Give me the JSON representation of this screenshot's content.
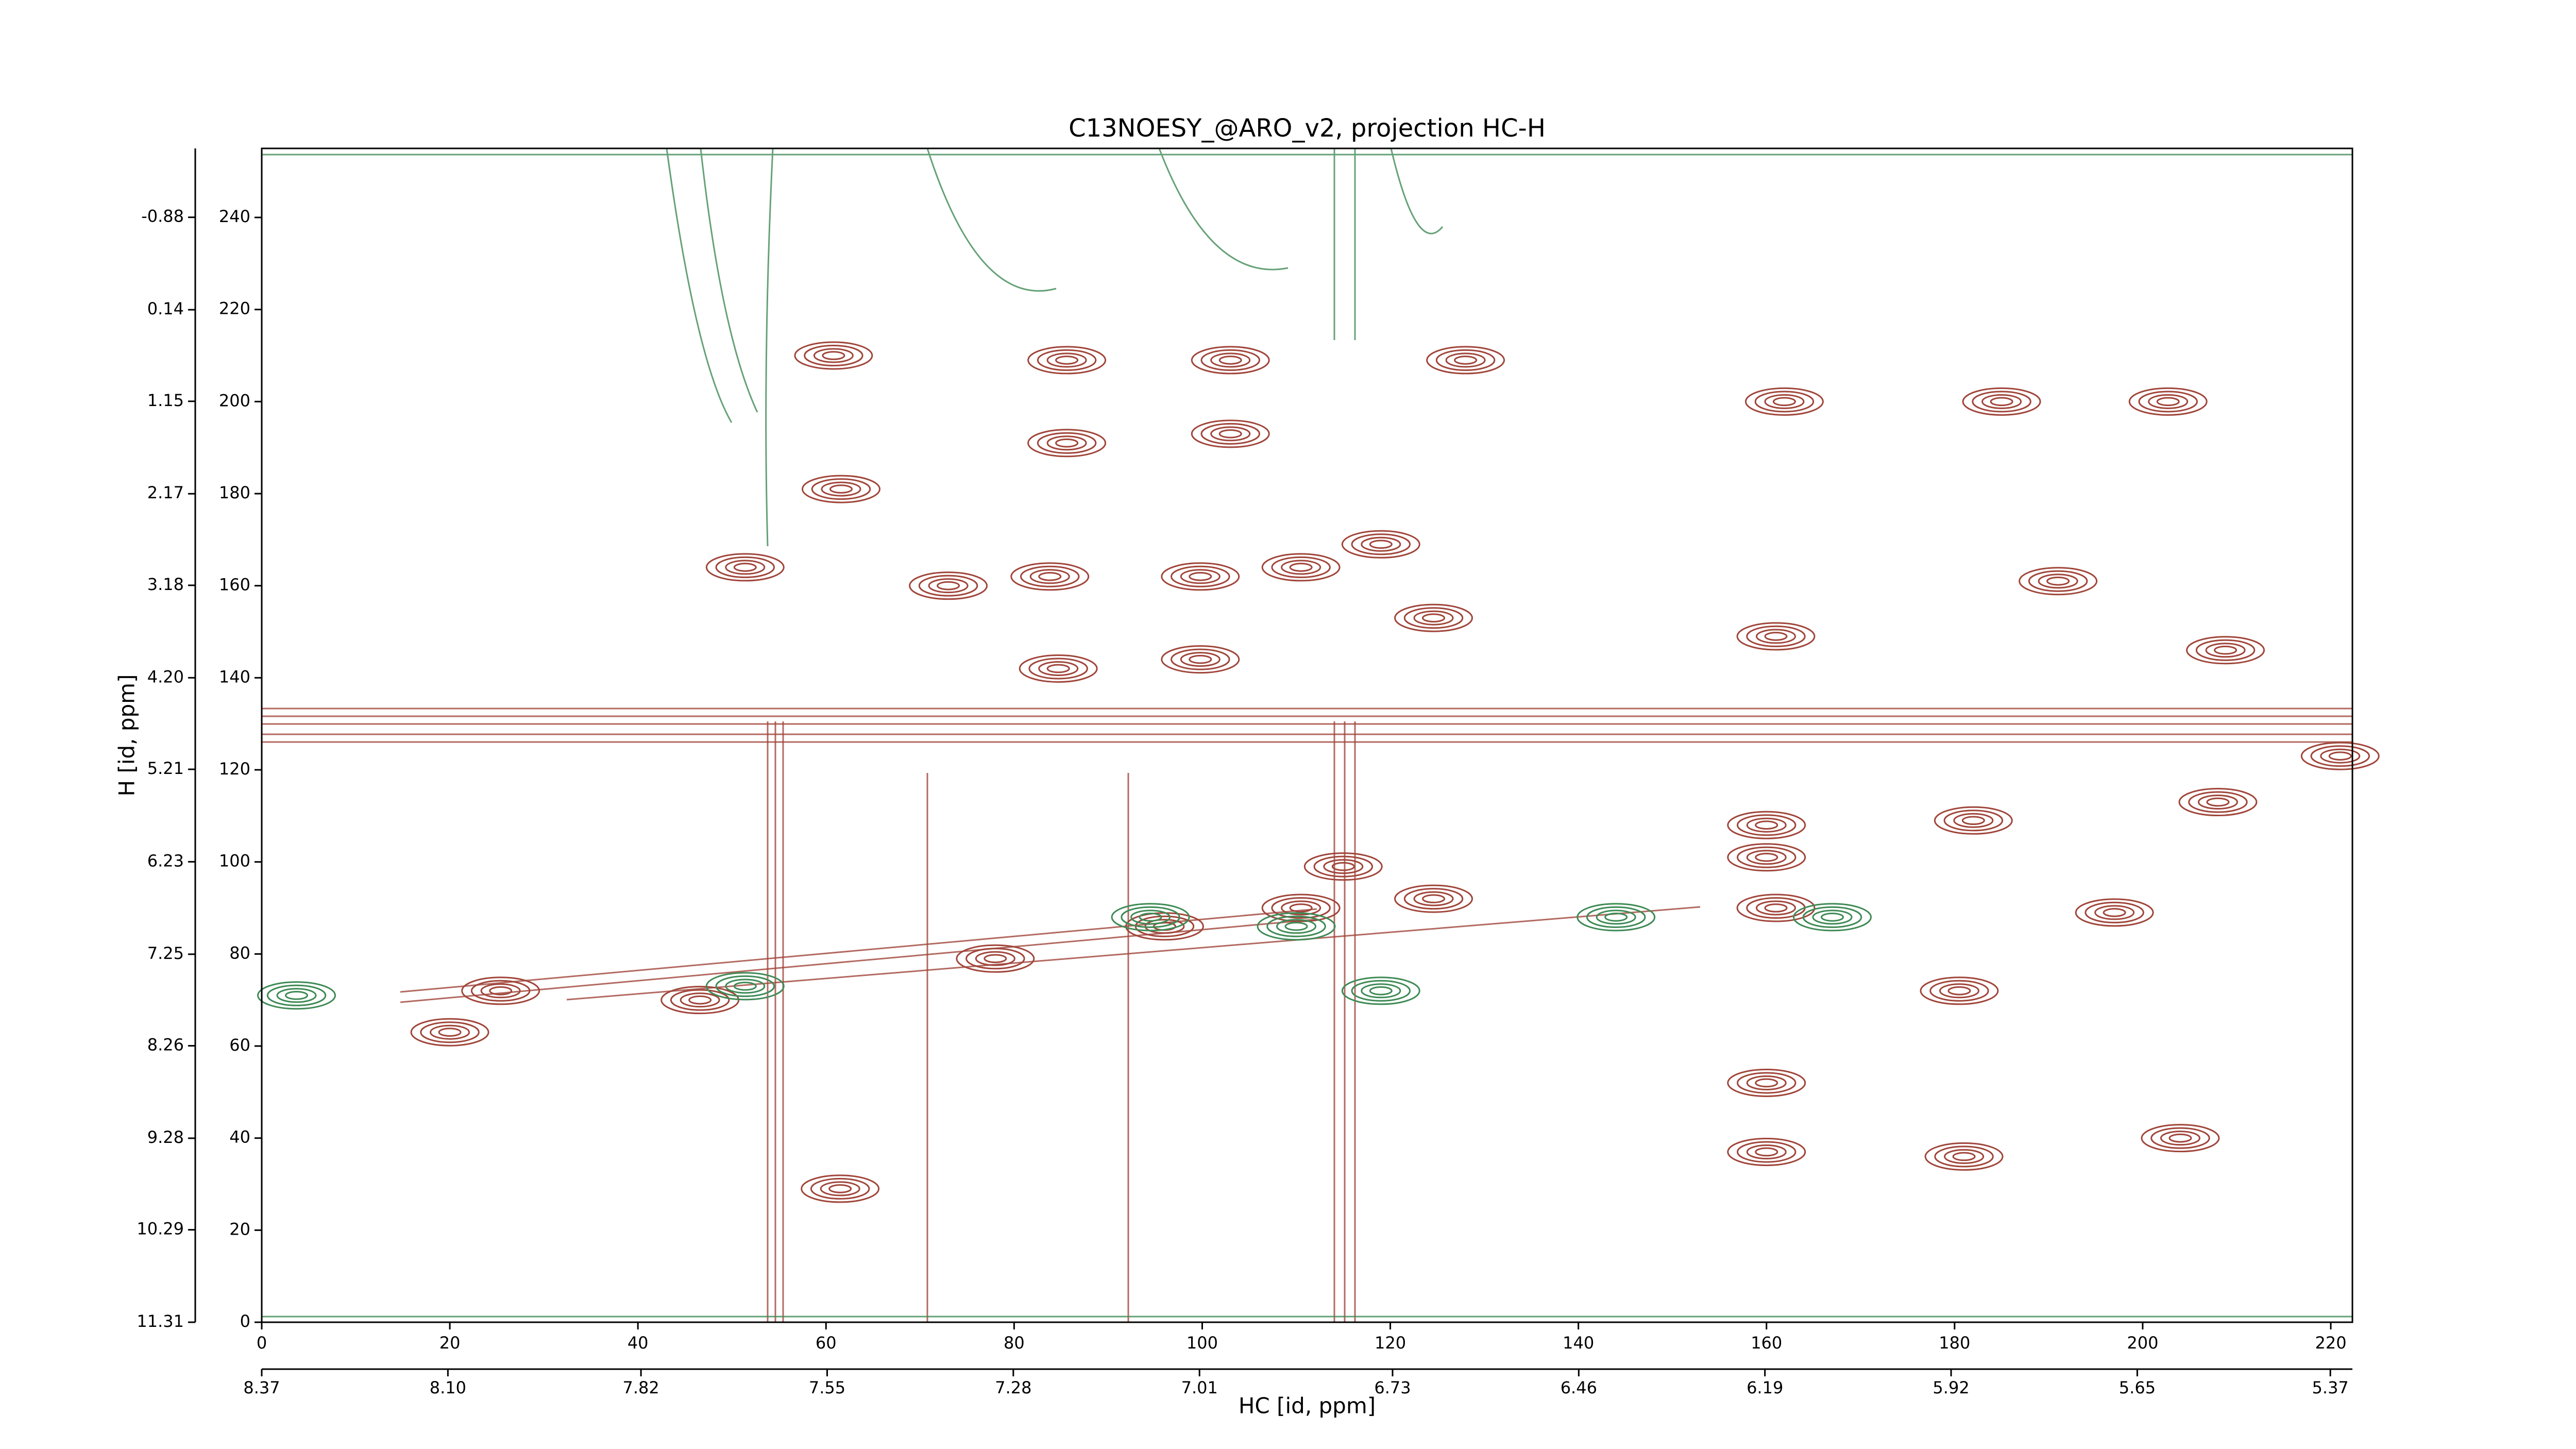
{
  "chart_data": {
    "type": "contour",
    "title": "C13NOESY_@ARO_v2, projection HC-H",
    "xlabel": "HC [id, ppm]",
    "ylabel": "H [id, ppm]",
    "xlim": [
      0,
      222.3
    ],
    "xticks": [
      0,
      20,
      40,
      60,
      80,
      100,
      120,
      140,
      160,
      180,
      200,
      220
    ],
    "ylim": [
      0,
      255
    ],
    "yticks": [
      0,
      20,
      40,
      60,
      80,
      100,
      120,
      140,
      160,
      180,
      200,
      220,
      240
    ],
    "x2lim": [
      8.37,
      5.338
    ],
    "x2ticks": [
      8.37,
      {
        "value": 8.1,
        "label": "8.10"
      },
      7.82,
      7.55,
      7.28,
      7.01,
      6.73,
      6.46,
      6.19,
      5.92,
      5.65,
      5.37
    ],
    "y2lim": [
      11.31,
      -1.64
    ],
    "y2ticks": [
      11.31,
      10.29,
      9.28,
      8.26,
      7.25,
      6.23,
      5.21,
      {
        "value": 4.2,
        "label": "4.20"
      },
      3.18,
      2.17,
      1.15,
      0.14,
      -0.88
    ],
    "series": [
      {
        "color": "#a0453a",
        "x": [
          51.4,
          60.8,
          85.6,
          85.6,
          103,
          103,
          128,
          119,
          124.6,
          185,
          202.7,
          208.8,
          160,
          160,
          182,
          208,
          161,
          197,
          115,
          124.6,
          78,
          96,
          110.5,
          25.4,
          46.6,
          20,
          180.5,
          160,
          160,
          181,
          204,
          61.5,
          83.8,
          73,
          99.8,
          110.5,
          84.7,
          99.8,
          161,
          161.9,
          191,
          61.6,
          221
        ],
        "y": [
          164,
          210,
          209,
          191,
          209,
          193,
          209,
          169,
          153,
          200,
          200,
          146,
          108,
          101,
          109,
          113,
          90,
          89,
          99,
          92,
          79,
          86,
          90,
          72,
          70,
          63,
          72,
          52,
          37,
          36,
          40,
          29,
          162,
          160,
          162,
          164,
          142,
          144,
          149,
          200,
          161,
          181,
          123
        ]
      },
      {
        "color": "#3e8a55",
        "x": [
          51.4,
          110,
          94.5,
          144,
          167,
          119,
          3.7
        ],
        "y": [
          73,
          86,
          88,
          88,
          88,
          72,
          71
        ]
      }
    ]
  }
}
